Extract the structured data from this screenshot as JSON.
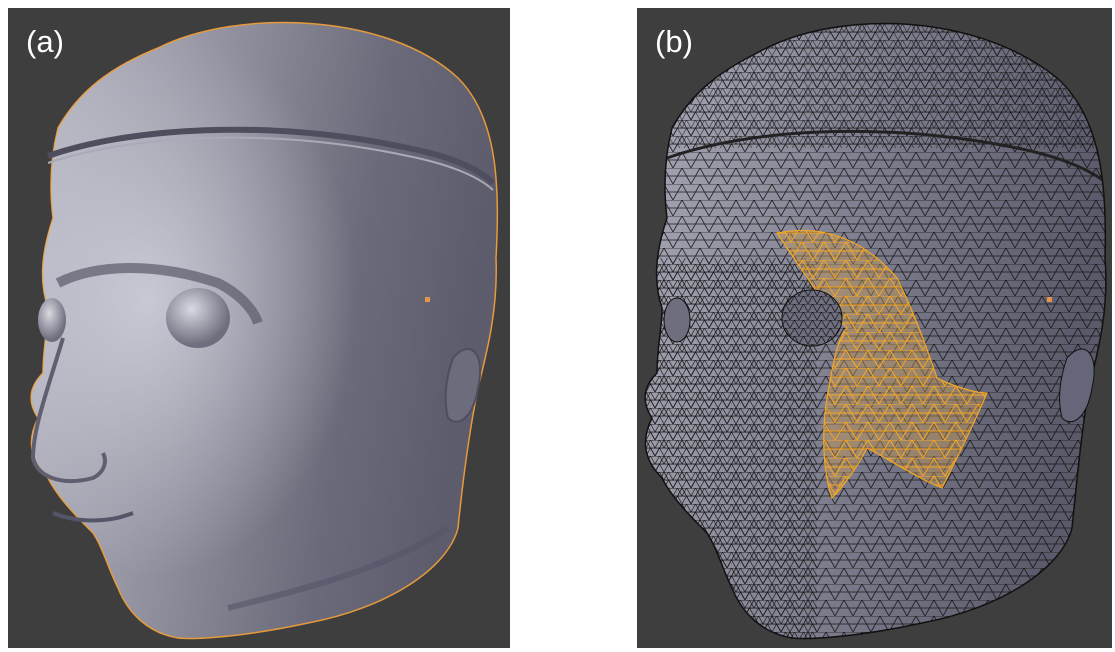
{
  "figure": {
    "viewport_bg": "#3e3e3e",
    "mesh_color": "#8f8f9c",
    "selection_color": "#f5a623",
    "wire_color": "#111111",
    "panels": [
      {
        "label": "(a)",
        "view": "solid-shaded-head-object-mode"
      },
      {
        "label": "(b)",
        "view": "wireframe-head-edit-mode-partial-selection"
      }
    ]
  }
}
